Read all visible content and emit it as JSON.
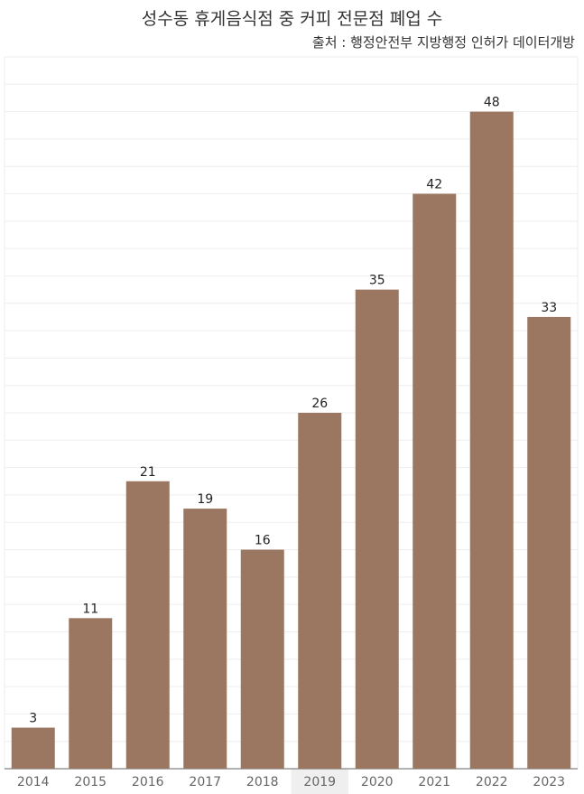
{
  "title": "성수동 휴게음식점 중 커피 전문점 폐업 수",
  "subtitle": "출처 : 행정안전부 지방행정 인허가 데이터개방",
  "colors": {
    "bar": "#9b7660",
    "grid": "#eeeeee",
    "axis": "#666666",
    "highlight": "#efefef",
    "label": "#222222"
  },
  "chart_data": {
    "type": "bar",
    "categories": [
      "2014",
      "2015",
      "2016",
      "2017",
      "2018",
      "2019",
      "2020",
      "2021",
      "2022",
      "2023"
    ],
    "values": [
      3,
      11,
      21,
      19,
      16,
      26,
      35,
      42,
      48,
      33
    ],
    "ylim": [
      0,
      52
    ],
    "grid": true,
    "highlighted_category": "2019"
  }
}
